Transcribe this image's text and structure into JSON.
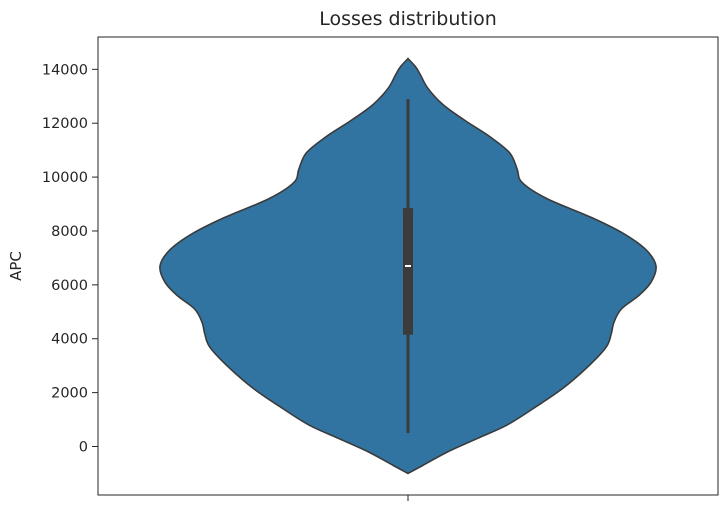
{
  "chart_data": {
    "type": "violin",
    "title": "Losses distribution",
    "xlabel": "",
    "ylabel": "APC",
    "ylim": [
      -1800,
      15200
    ],
    "yticks": [
      0,
      2000,
      4000,
      6000,
      8000,
      10000,
      12000,
      14000
    ],
    "ytick_labels": [
      "0",
      "2000",
      "4000",
      "6000",
      "8000",
      "10000",
      "12000",
      "14000"
    ],
    "grid": false,
    "legend": "none",
    "colors": {
      "violin_fill": "#3274a1",
      "violin_edge": "#3b3b3b",
      "box": "#3b3b3b",
      "median": "#ffffff",
      "axes": "#262626"
    },
    "series": [
      {
        "summary": {
          "min": 500,
          "q1": 4150,
          "median": 6700,
          "q3": 8850,
          "max": 12900
        },
        "density_max_halfwidth": 6700,
        "density_profile": [
          {
            "y": -1000,
            "width": 0.0
          },
          {
            "y": -700,
            "width": 0.06
          },
          {
            "y": -200,
            "width": 0.16
          },
          {
            "y": 300,
            "width": 0.28
          },
          {
            "y": 800,
            "width": 0.4
          },
          {
            "y": 1500,
            "width": 0.52
          },
          {
            "y": 2200,
            "width": 0.63
          },
          {
            "y": 3000,
            "width": 0.73
          },
          {
            "y": 3700,
            "width": 0.8
          },
          {
            "y": 4200,
            "width": 0.82
          },
          {
            "y": 4600,
            "width": 0.83
          },
          {
            "y": 5100,
            "width": 0.86
          },
          {
            "y": 5600,
            "width": 0.93
          },
          {
            "y": 6100,
            "width": 0.98
          },
          {
            "y": 6700,
            "width": 1.0
          },
          {
            "y": 7300,
            "width": 0.96
          },
          {
            "y": 7900,
            "width": 0.87
          },
          {
            "y": 8500,
            "width": 0.74
          },
          {
            "y": 9200,
            "width": 0.56
          },
          {
            "y": 9800,
            "width": 0.46
          },
          {
            "y": 10300,
            "width": 0.44
          },
          {
            "y": 10900,
            "width": 0.41
          },
          {
            "y": 11500,
            "width": 0.33
          },
          {
            "y": 12100,
            "width": 0.23
          },
          {
            "y": 12700,
            "width": 0.14
          },
          {
            "y": 13300,
            "width": 0.08
          },
          {
            "y": 13800,
            "width": 0.05
          },
          {
            "y": 14100,
            "width": 0.03
          },
          {
            "y": 14400,
            "width": 0.0
          }
        ]
      }
    ]
  }
}
